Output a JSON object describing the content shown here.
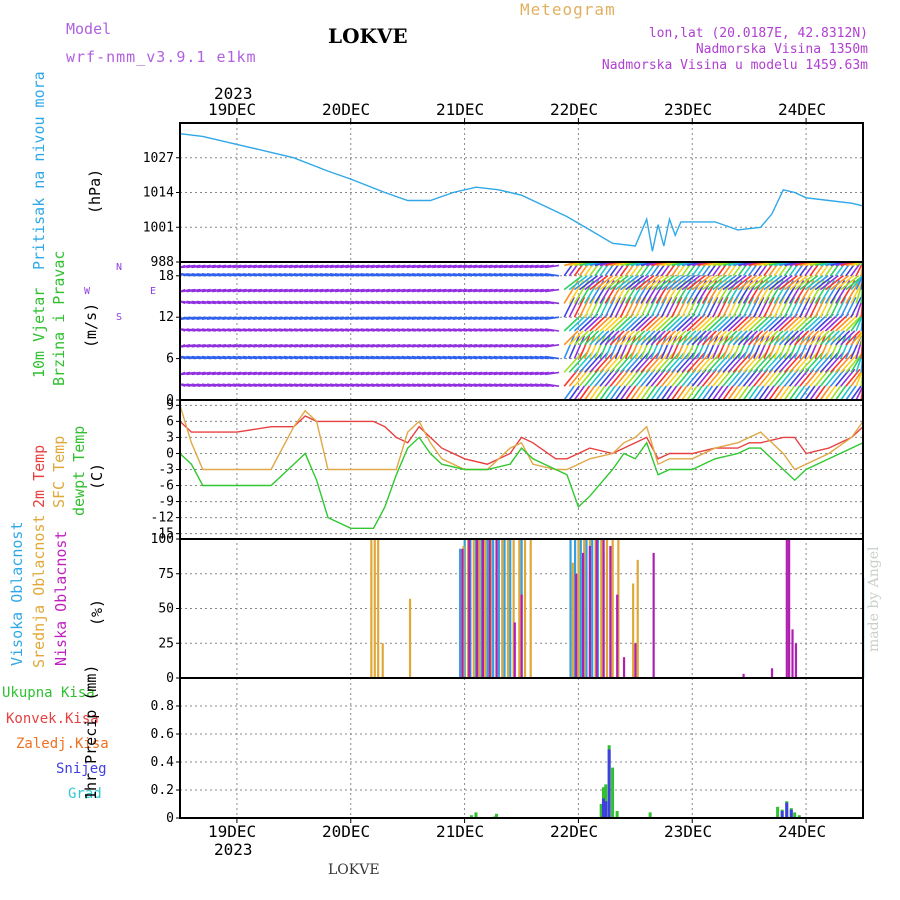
{
  "header": {
    "model_label": "Model",
    "model_name": "wrf-nmm_v3.9.1 e1km",
    "station": "LOKVE",
    "title": "Meteogram",
    "lonlat": "lon,lat (20.0187E, 42.8312N)",
    "elevation": "Nadmorska Visina 1350m",
    "model_elevation": "Nadmorska Visina u modelu 1459.63m"
  },
  "watermark": "made by Angel",
  "footer_station": "LOKVE",
  "time_axis": {
    "year": "2023",
    "ticks": [
      "19DEC",
      "20DEC",
      "21DEC",
      "22DEC",
      "23DEC",
      "24DEC"
    ]
  },
  "colors": {
    "pressure": "#30a8e8",
    "temp2m": "#e84040",
    "sfc_temp": "#e0a848",
    "dewpt": "#30c830",
    "cloud_high": "#30a0e0",
    "cloud_mid": "#e0a838",
    "cloud_low": "#b020b0",
    "precip_total": "#30c030",
    "precip_snow": "#4040e0",
    "wind_calm": "#9030e0",
    "wind_mid": "#3060f0"
  },
  "panel_labels": {
    "pressure": "Pritisak na nivou mora",
    "pressure_unit": "(hPa)",
    "wind_line1": "10m Vjetar",
    "wind_line2": "Brzina i Pravac",
    "wind_unit": "(m/s)",
    "temp_2m": "2m Temp",
    "temp_sfc": "SFC Temp",
    "temp_dewpt": "dewpt Temp",
    "temp_unit": "(C)",
    "cloud_high": "Visoka Oblacnost",
    "cloud_mid": "Srednja Oblacnost",
    "cloud_low": "Niska Oblacnost",
    "cloud_unit": "(%)",
    "precip_total": "Ukupna Kisa",
    "precip_conv": "Konvek.Kisa",
    "precip_frozen": "Zaledj.Kisa",
    "precip_snow": "Snijeg",
    "precip_hail": "Grad",
    "precip_unit": "1hr Precip (mm)"
  },
  "compass": {
    "w": "W",
    "e": "E",
    "n": "N",
    "s": "S"
  },
  "chart_data": [
    {
      "type": "line",
      "name": "pressure",
      "ylabel": "(hPa)",
      "ylim": [
        988,
        1040
      ],
      "yticks": [
        988,
        1001,
        1014,
        1027
      ],
      "x": [
        18.5,
        18.7,
        19.0,
        19.2,
        19.5,
        19.8,
        20.0,
        20.3,
        20.5,
        20.7,
        20.9,
        21.1,
        21.3,
        21.5,
        21.7,
        21.9,
        22.1,
        22.3,
        22.5,
        22.6,
        22.65,
        22.7,
        22.75,
        22.8,
        22.85,
        22.9,
        23.0,
        23.2,
        23.4,
        23.6,
        23.7,
        23.8,
        23.9,
        24.0,
        24.2,
        24.4,
        24.5
      ],
      "values": [
        1036,
        1035,
        1032,
        1030,
        1027,
        1022,
        1019,
        1014,
        1011,
        1011,
        1014,
        1016,
        1015,
        1013,
        1009,
        1005,
        1000,
        995,
        994,
        1004,
        992,
        1002,
        994,
        1004,
        998,
        1003,
        1003,
        1003,
        1000,
        1001,
        1006,
        1015,
        1014,
        1012,
        1011,
        1010,
        1009
      ]
    },
    {
      "type": "line",
      "name": "temperature",
      "ylabel": "(C)",
      "ylim": [
        -16,
        10
      ],
      "yticks": [
        -15,
        -12,
        -9,
        -6,
        -3,
        0,
        3,
        6,
        9
      ],
      "x": [
        18.5,
        18.6,
        18.7,
        19.0,
        19.3,
        19.5,
        19.6,
        19.7,
        19.8,
        20.0,
        20.2,
        20.3,
        20.4,
        20.5,
        20.6,
        20.7,
        20.8,
        21.0,
        21.2,
        21.4,
        21.5,
        21.6,
        21.8,
        21.9,
        22.0,
        22.1,
        22.3,
        22.4,
        22.5,
        22.6,
        22.7,
        22.8,
        23.0,
        23.2,
        23.4,
        23.5,
        23.6,
        23.8,
        23.9,
        24.0,
        24.2,
        24.4,
        24.5
      ],
      "series": [
        {
          "name": "2m Temp",
          "values": [
            6,
            4,
            4,
            4,
            5,
            5,
            7,
            6,
            6,
            6,
            6,
            5,
            3,
            2,
            5,
            3,
            1,
            -1,
            -2,
            0,
            3,
            2,
            -1,
            -1,
            0,
            1,
            0,
            1,
            2,
            3,
            -1,
            0,
            0,
            1,
            1,
            2,
            2,
            3,
            3,
            0,
            1,
            3,
            5
          ]
        },
        {
          "name": "SFC Temp",
          "values": [
            9,
            2,
            -3,
            -3,
            -3,
            5,
            8,
            6,
            -3,
            -3,
            -3,
            -3,
            -3,
            4,
            6,
            2,
            -1,
            -3,
            -3,
            1,
            2,
            -2,
            -3,
            -3,
            -2,
            -1,
            0,
            2,
            3,
            5,
            -2,
            -1,
            -1,
            1,
            2,
            3,
            4,
            0,
            -3,
            -2,
            0,
            3,
            6
          ]
        },
        {
          "name": "dewpt Temp",
          "values": [
            0,
            -2,
            -6,
            -6,
            -6,
            -2,
            0,
            -5,
            -12,
            -14,
            -14,
            -10,
            -4,
            1,
            3,
            0,
            -2,
            -3,
            -3,
            -2,
            1,
            -1,
            -3,
            -4,
            -10,
            -8,
            -3,
            0,
            -1,
            2,
            -4,
            -3,
            -3,
            -1,
            0,
            1,
            1,
            -3,
            -5,
            -3,
            -1,
            1,
            2
          ]
        }
      ]
    },
    {
      "type": "bar",
      "name": "cloud_cover",
      "ylabel": "(%)",
      "ylim": [
        0,
        100
      ],
      "yticks": [
        0,
        25,
        50,
        75,
        100
      ],
      "series": [
        {
          "name": "Visoka Oblacnost",
          "x": [
            20.96,
            21.0,
            21.05,
            21.1,
            21.15,
            21.2,
            21.25,
            21.3,
            21.35,
            21.4,
            21.5,
            21.93,
            21.97,
            22.02,
            22.07,
            22.12,
            22.17,
            22.22,
            24.5
          ],
          "values": [
            93,
            100,
            100,
            100,
            100,
            100,
            100,
            100,
            100,
            100,
            100,
            100,
            100,
            100,
            100,
            100,
            100,
            90,
            72
          ]
        },
        {
          "name": "Srednja Oblacnost",
          "x": [
            20.18,
            20.21,
            20.24,
            20.28,
            20.52,
            20.99,
            21.03,
            21.08,
            21.13,
            21.18,
            21.23,
            21.28,
            21.33,
            21.38,
            21.43,
            21.48,
            21.53,
            21.58,
            21.95,
            22.0,
            22.05,
            22.1,
            22.15,
            22.2,
            22.25,
            22.3,
            22.35,
            22.48,
            22.52
          ],
          "values": [
            100,
            100,
            100,
            25,
            57,
            95,
            100,
            100,
            100,
            100,
            100,
            100,
            100,
            100,
            100,
            100,
            100,
            100,
            83,
            100,
            100,
            100,
            100,
            100,
            100,
            100,
            100,
            68,
            85
          ]
        },
        {
          "name": "Niska Oblacnost",
          "x": [
            20.98,
            21.04,
            21.11,
            21.16,
            21.22,
            21.28,
            21.44,
            21.5,
            21.98,
            22.04,
            22.1,
            22.16,
            22.22,
            22.28,
            22.34,
            22.4,
            22.5,
            22.66,
            23.45,
            23.7,
            23.83,
            23.85,
            23.88,
            23.91
          ],
          "values": [
            93,
            100,
            100,
            100,
            100,
            100,
            40,
            60,
            75,
            90,
            95,
            100,
            100,
            95,
            60,
            15,
            25,
            90,
            3,
            7,
            100,
            100,
            35,
            25
          ]
        }
      ]
    },
    {
      "type": "bar",
      "name": "precipitation",
      "ylabel": "1hr Precip (mm)",
      "ylim": [
        0,
        1.0
      ],
      "yticks": [
        0,
        0.2,
        0.4,
        0.6,
        0.8
      ],
      "series": [
        {
          "name": "Ukupna Kisa",
          "x": [
            21.06,
            21.1,
            21.26,
            21.28,
            22.2,
            22.22,
            22.24,
            22.27,
            22.3,
            22.34,
            22.63,
            23.75,
            23.79,
            23.83,
            23.87,
            23.9,
            23.94
          ],
          "values": [
            0.02,
            0.04,
            0.01,
            0.03,
            0.1,
            0.22,
            0.24,
            0.52,
            0.36,
            0.05,
            0.04,
            0.08,
            0.06,
            0.12,
            0.07,
            0.04,
            0.02
          ]
        },
        {
          "name": "Snijeg",
          "x": [
            22.22,
            22.24,
            22.27,
            23.79,
            23.83,
            23.87
          ],
          "values": [
            0.14,
            0.12,
            0.49,
            0.05,
            0.11,
            0.06
          ]
        }
      ]
    },
    {
      "type": "heatmap",
      "name": "wind",
      "ylabel": "(m/s)",
      "ylim": [
        0,
        20
      ],
      "yticks": [
        0,
        6,
        12,
        18
      ]
    }
  ]
}
